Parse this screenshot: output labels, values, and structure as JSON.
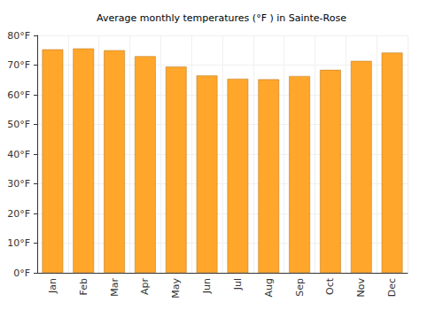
{
  "chart_data": {
    "type": "bar",
    "title": "Average monthly temperatures (°F ) in Sainte-Rose",
    "categories": [
      "Jan",
      "Feb",
      "Mar",
      "Apr",
      "May",
      "Jun",
      "Jul",
      "Aug",
      "Sep",
      "Oct",
      "Nov",
      "Dec"
    ],
    "values": [
      75.3,
      75.6,
      75.0,
      73.0,
      69.5,
      66.5,
      65.4,
      65.2,
      66.3,
      68.4,
      71.4,
      74.2
    ],
    "color": "#ffa62b",
    "ylim": [
      0,
      80
    ],
    "yticks": [
      {
        "value": 0,
        "label": "0°F"
      },
      {
        "value": 10,
        "label": "10°F"
      },
      {
        "value": 20,
        "label": "20°F"
      },
      {
        "value": 30,
        "label": "30°F"
      },
      {
        "value": 40,
        "label": "40°F"
      },
      {
        "value": 50,
        "label": "50°F"
      },
      {
        "value": 60,
        "label": "60°F"
      },
      {
        "value": 70,
        "label": "70°F"
      },
      {
        "value": 80,
        "label": "80°F"
      }
    ],
    "grid": true
  }
}
